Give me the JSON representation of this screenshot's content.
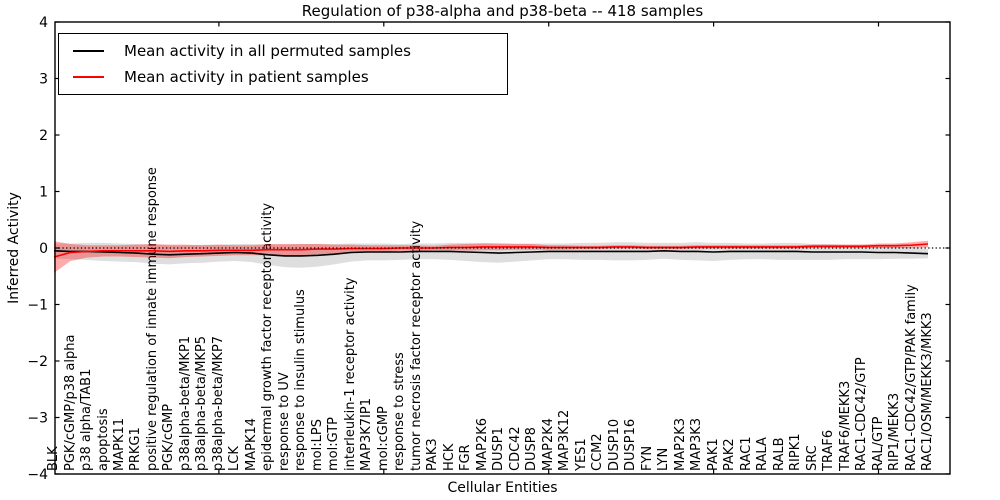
{
  "chart_data": {
    "type": "line",
    "title": "Regulation of p38-alpha and p38-beta -- 418 samples",
    "xlabel": "Cellular Entities",
    "ylabel": "Inferred Activity",
    "ylim": [
      -4,
      4
    ],
    "yticks": [
      4,
      3,
      2,
      1,
      0,
      -1,
      -2,
      -3,
      -4
    ],
    "xtick_indices": [
      10,
      20,
      30,
      40,
      50
    ],
    "grid": false,
    "legend_position": "upper left",
    "zero_line": {
      "y": 0,
      "style": "dotted",
      "color": "#000000"
    },
    "frame_color": "#000000",
    "categories": [
      "BLK",
      "PGK/cGMP/p38 alpha",
      "p38 alpha/TAB1",
      "apoptosis",
      "MAPK11",
      "PRKG1",
      "positive regulation of innate immune response",
      "PGK/cGMP",
      "p38alpha-beta/MKP1",
      "p38alpha-beta/MKP5",
      "p38alpha-beta/MKP7",
      "LCK",
      "MAPK14",
      "epidermal growth factor receptor activity",
      "response to UV",
      "response to insulin stimulus",
      "mol:LPS",
      "mol:GTP",
      "interleukin-1 receptor activity",
      "MAP3K7IP1",
      "mol:cGMP",
      "response to stress",
      "tumor necrosis factor receptor activity",
      "PAK3",
      "HCK",
      "FGR",
      "MAP2K6",
      "DUSP1",
      "CDC42",
      "DUSP8",
      "MAP2K4",
      "MAP3K12",
      "YES1",
      "CCM2",
      "DUSP10",
      "DUSP16",
      "FYN",
      "LYN",
      "MAP2K3",
      "MAP3K3",
      "PAK1",
      "PAK2",
      "RAC1",
      "RALA",
      "RALB",
      "RIPK1",
      "SRC",
      "TRAF6",
      "TRAF6/MEKK3",
      "RAC1-CDC42/GTP",
      "RAL/GTP",
      "RIP1/MEKK3",
      "RAC1-CDC42/GTP/PAK family",
      "RAC1/OSM/MEKK3/MKK3"
    ],
    "series": [
      {
        "name": "Mean activity in all permuted samples",
        "color": "#000000",
        "band_color": "rgba(0,0,0,0.13)",
        "values": [
          -0.05,
          -0.06,
          -0.06,
          -0.07,
          -0.08,
          -0.09,
          -0.11,
          -0.12,
          -0.11,
          -0.1,
          -0.09,
          -0.08,
          -0.09,
          -0.12,
          -0.14,
          -0.14,
          -0.13,
          -0.11,
          -0.08,
          -0.07,
          -0.07,
          -0.07,
          -0.06,
          -0.06,
          -0.06,
          -0.07,
          -0.08,
          -0.09,
          -0.08,
          -0.07,
          -0.06,
          -0.06,
          -0.06,
          -0.06,
          -0.06,
          -0.06,
          -0.06,
          -0.05,
          -0.06,
          -0.06,
          -0.07,
          -0.06,
          -0.06,
          -0.06,
          -0.06,
          -0.06,
          -0.07,
          -0.07,
          -0.07,
          -0.07,
          -0.08,
          -0.08,
          -0.09,
          -0.1
        ],
        "band_halfwidth": [
          0.13,
          0.14,
          0.15,
          0.16,
          0.16,
          0.16,
          0.17,
          0.17,
          0.16,
          0.16,
          0.15,
          0.15,
          0.16,
          0.18,
          0.2,
          0.21,
          0.2,
          0.18,
          0.16,
          0.15,
          0.15,
          0.14,
          0.14,
          0.14,
          0.15,
          0.16,
          0.17,
          0.17,
          0.16,
          0.15,
          0.14,
          0.14,
          0.15,
          0.15,
          0.16,
          0.16,
          0.15,
          0.14,
          0.15,
          0.16,
          0.16,
          0.15,
          0.14,
          0.14,
          0.15,
          0.15,
          0.14,
          0.14,
          0.13,
          0.13,
          0.12,
          0.11,
          0.1,
          0.08
        ]
      },
      {
        "name": "Mean activity in patient samples",
        "color": "#ff0000",
        "band_color": "rgba(255,0,0,0.33)",
        "values": [
          -0.16,
          -0.08,
          -0.06,
          -0.05,
          -0.05,
          -0.05,
          -0.05,
          -0.06,
          -0.05,
          -0.05,
          -0.04,
          -0.04,
          -0.04,
          -0.03,
          -0.03,
          -0.03,
          -0.02,
          -0.02,
          -0.01,
          -0.01,
          -0.01,
          0.0,
          0.0,
          0.0,
          0.01,
          0.01,
          0.02,
          0.02,
          0.02,
          0.02,
          0.01,
          0.01,
          0.01,
          0.01,
          0.02,
          0.02,
          0.01,
          0.01,
          0.01,
          0.02,
          0.02,
          0.02,
          0.02,
          0.02,
          0.02,
          0.02,
          0.03,
          0.03,
          0.03,
          0.03,
          0.04,
          0.04,
          0.05,
          0.07
        ],
        "band_halfwidth": [
          0.28,
          0.15,
          0.11,
          0.1,
          0.1,
          0.11,
          0.12,
          0.12,
          0.11,
          0.1,
          0.1,
          0.09,
          0.09,
          0.1,
          0.1,
          0.1,
          0.09,
          0.08,
          0.07,
          0.06,
          0.06,
          0.05,
          0.05,
          0.04,
          0.05,
          0.06,
          0.06,
          0.06,
          0.05,
          0.05,
          0.04,
          0.04,
          0.03,
          0.03,
          0.03,
          0.03,
          0.03,
          0.03,
          0.03,
          0.03,
          0.03,
          0.03,
          0.03,
          0.03,
          0.03,
          0.03,
          0.03,
          0.03,
          0.03,
          0.03,
          0.04,
          0.04,
          0.05,
          0.06
        ]
      }
    ]
  }
}
